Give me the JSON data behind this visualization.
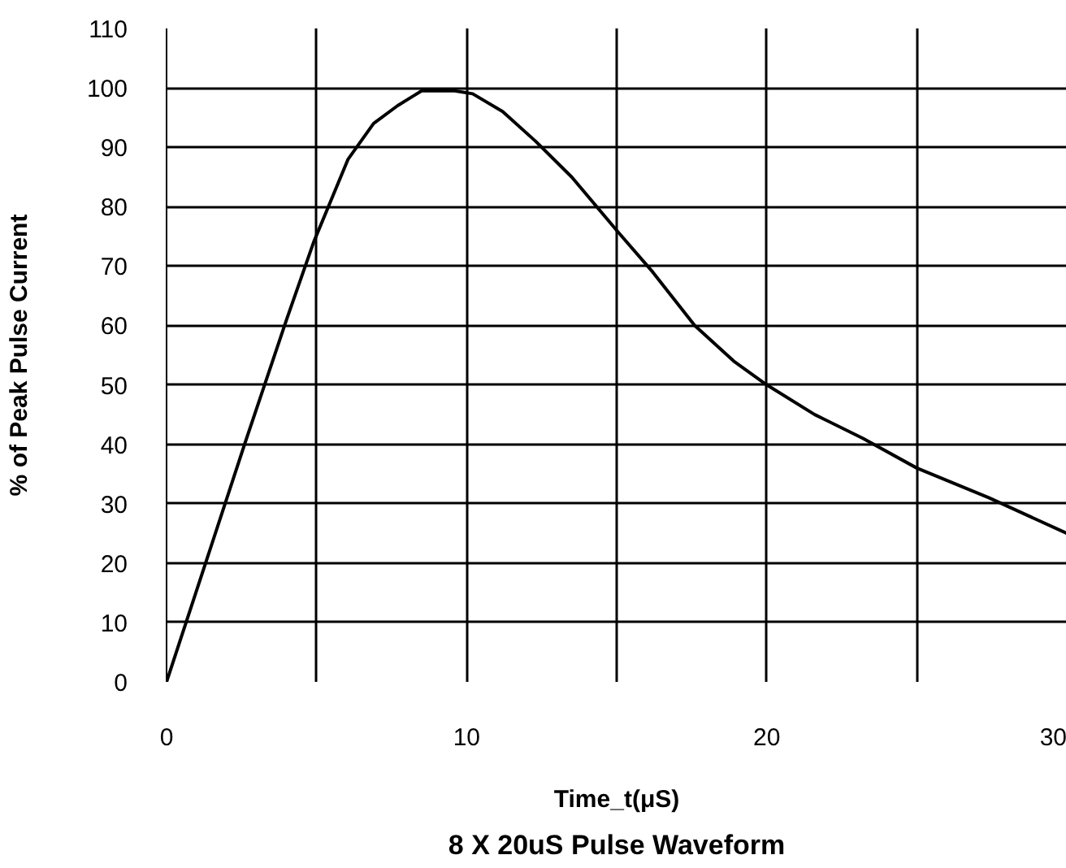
{
  "chart_data": {
    "type": "line",
    "title": "8 X 20uS Pulse Waveform",
    "xlabel": "Time_t(μS)",
    "ylabel": "% of Peak Pulse Current",
    "xlim": [
      0,
      30
    ],
    "xticks": [
      0,
      {
        "value": 5,
        "label": null
      },
      10,
      {
        "value": 15,
        "label": null
      },
      20,
      {
        "value": 25,
        "label": null
      },
      30
    ],
    "ylim": [
      0,
      110
    ],
    "yticks": [
      0,
      10,
      20,
      30,
      40,
      50,
      60,
      70,
      80,
      90,
      100,
      110
    ],
    "grid": true,
    "marker": "none",
    "line_style": "solid",
    "series": [
      {
        "color": "#000000",
        "x": [
          0,
          1.3,
          2.6,
          4.0,
          4.9,
          6.05,
          6.9,
          7.7,
          8.5,
          9.6,
          10.2,
          11.2,
          12.3,
          13.5,
          15,
          16.2,
          17.6,
          18.9,
          20,
          21.6,
          23.2,
          25,
          27.4,
          30
        ],
        "values": [
          0,
          20,
          40,
          61,
          74,
          88,
          94,
          97,
          99.5,
          99.5,
          99,
          96,
          91,
          85,
          76,
          69,
          60,
          54,
          50,
          45,
          41,
          36,
          31,
          25
        ]
      }
    ]
  }
}
